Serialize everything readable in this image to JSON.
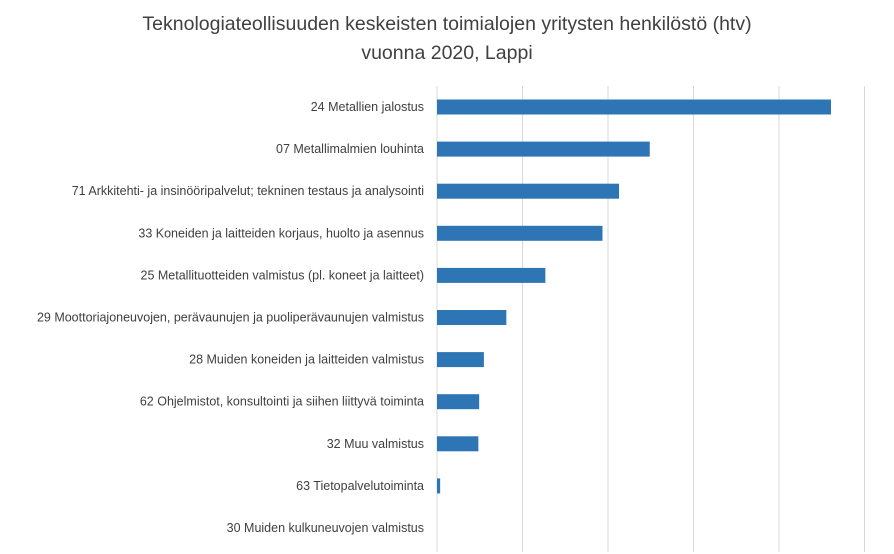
{
  "chart_data": {
    "type": "bar",
    "orientation": "horizontal",
    "title": "Teknologiateollisuuden keskeisten toimialojen yritysten henkilöstö (htv)",
    "subtitle": "vuonna 2020, Lappi",
    "xlabel": "",
    "ylabel": "",
    "xlim": [
      0,
      1000
    ],
    "grid": true,
    "legend": "none",
    "bar_color": "#2e75b6",
    "grid_color": "#d9d9d9",
    "categories": [
      "24 Metallien jalostus",
      "07 Metallimalmien louhinta",
      "71 Arkkitehti- ja insinööripalvelut; tekninen testaus ja analysointi",
      "33 Koneiden ja laitteiden korjaus, huolto ja asennus",
      "25 Metallituotteiden valmistus (pl. koneet ja laitteet)",
      "29 Moottoriajoneuvojen, perävaunujen ja puoliperävaunujen valmistus",
      "28 Muiden koneiden ja laitteiden valmistus",
      "62 Ohjelmistot, konsultointi ja siihen liittyvä toiminta",
      "32 Muu valmistus",
      "63 Tietopalvelutoiminta",
      "30 Muiden kulkuneuvojen valmistus"
    ],
    "values": [
      1000,
      540,
      462,
      420,
      275,
      176,
      119,
      107,
      105,
      8,
      0
    ]
  }
}
